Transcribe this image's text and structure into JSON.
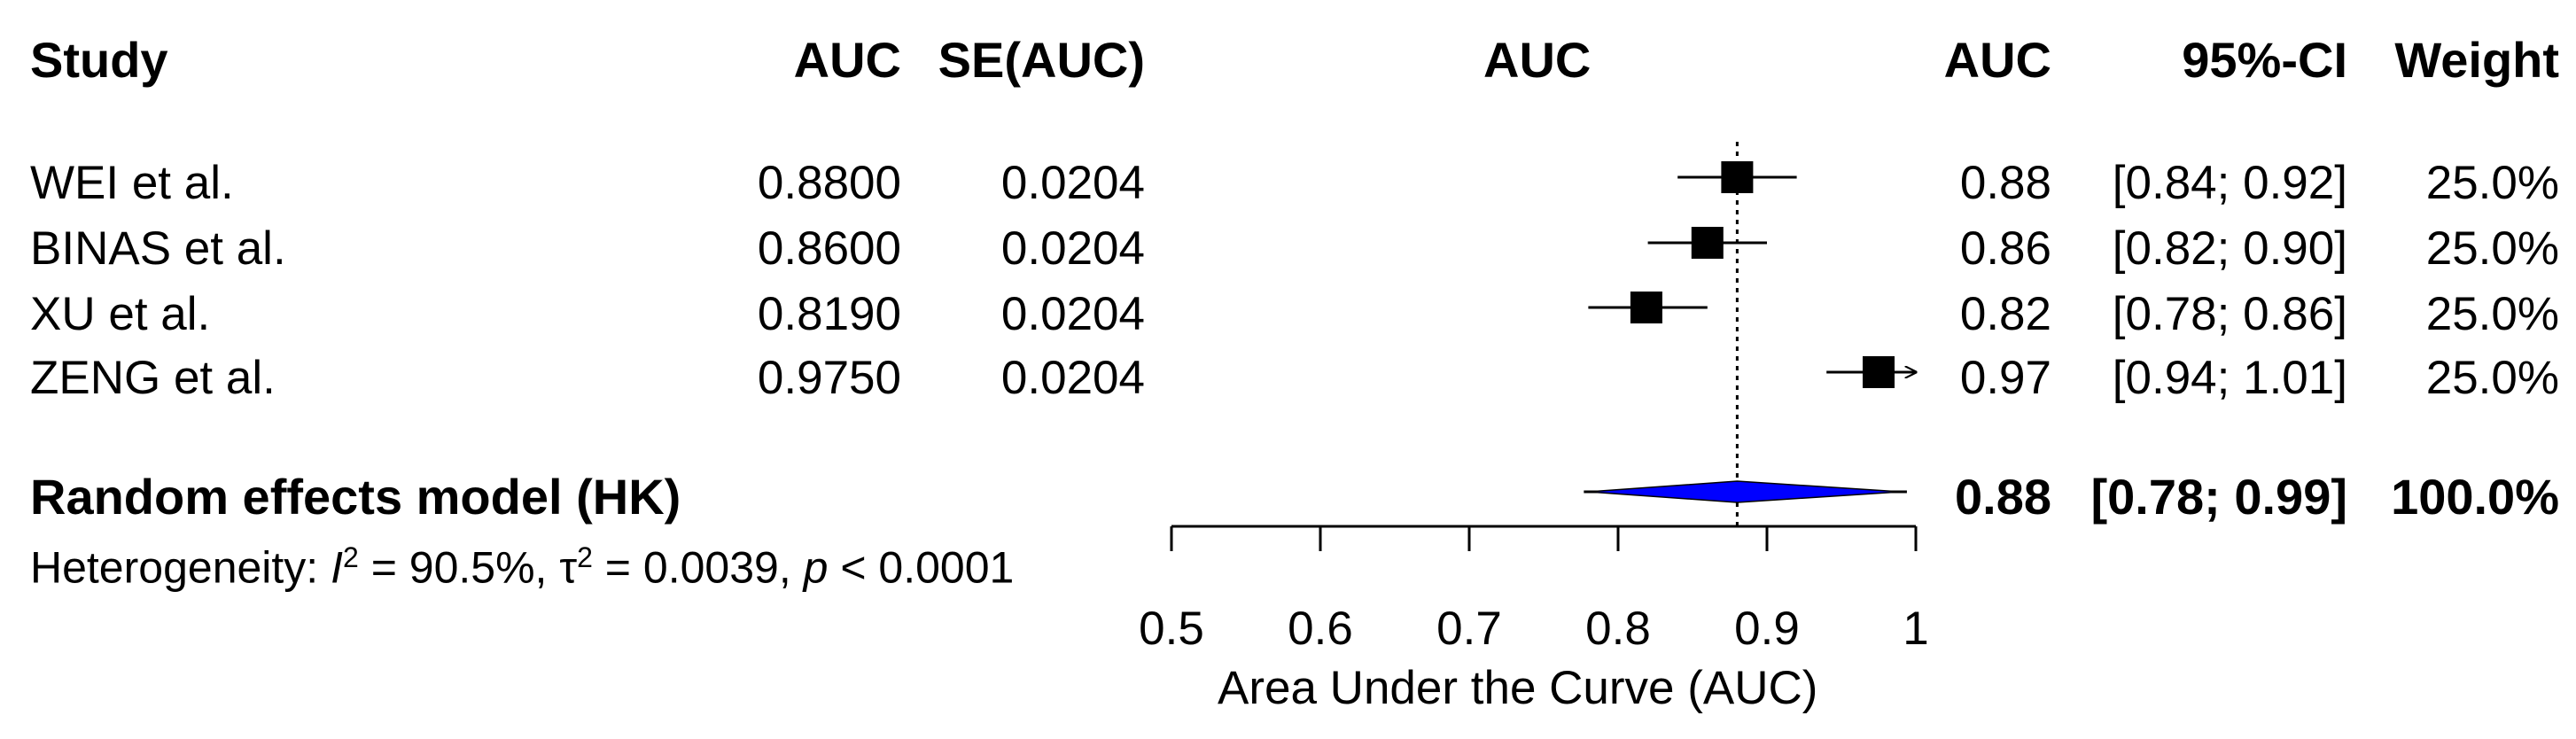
{
  "headers": {
    "study": "Study",
    "auc": "AUC",
    "se_auc": "SE(AUC)",
    "plot_auc": "AUC",
    "auc_right": "AUC",
    "ci": "95%-CI",
    "weight": "Weight"
  },
  "studies": [
    {
      "name": "WEI et al.",
      "auc": "0.8800",
      "se": "0.0204",
      "est": "0.88",
      "ci": "[0.84; 0.92]",
      "weight": "25.0%"
    },
    {
      "name": "BINAS et al.",
      "auc": "0.8600",
      "se": "0.0204",
      "est": "0.86",
      "ci": "[0.82; 0.90]",
      "weight": "25.0%"
    },
    {
      "name": "XU et al.",
      "auc": "0.8190",
      "se": "0.0204",
      "est": "0.82",
      "ci": "[0.78; 0.86]",
      "weight": "25.0%"
    },
    {
      "name": "ZENG et al.",
      "auc": "0.9750",
      "se": "0.0204",
      "est": "0.97",
      "ci": "[0.94; 1.01]",
      "weight": "25.0%"
    }
  ],
  "pooled": {
    "label": "Random effects model (HK)",
    "est": "0.88",
    "ci": "[0.78; 0.99]",
    "weight": "100.0%"
  },
  "heterogeneity": {
    "prefix": "Heterogeneity: ",
    "i_sym": "I",
    "sup": "2",
    "i_val": " = 90.5%, ",
    "tau_sym": "τ",
    "tau_val": " = 0.0039, ",
    "p_sym": "p",
    "p_val": " < 0.0001"
  },
  "chart_data": {
    "type": "forest",
    "xlabel": "Area Under the Curve (AUC)",
    "xlim": [
      0.5,
      1.0
    ],
    "ticks": [
      0.5,
      0.6,
      0.7,
      0.8,
      0.9,
      1.0
    ],
    "tick_labels": [
      "0.5",
      "0.6",
      "0.7",
      "0.8",
      "0.9",
      "1"
    ],
    "reference_line": 0.88,
    "studies": [
      {
        "name": "WEI et al.",
        "auc": 0.88,
        "lower": 0.84,
        "upper": 0.92,
        "weight": 25.0
      },
      {
        "name": "BINAS et al.",
        "auc": 0.86,
        "lower": 0.82,
        "upper": 0.9,
        "weight": 25.0
      },
      {
        "name": "XU et al.",
        "auc": 0.819,
        "lower": 0.78,
        "upper": 0.86,
        "weight": 25.0
      },
      {
        "name": "ZENG et al.",
        "auc": 0.975,
        "lower": 0.94,
        "upper": 1.01,
        "weight": 25.0
      }
    ],
    "pooled": {
      "auc": 0.88,
      "lower": 0.78,
      "upper": 0.99,
      "pred_lower": 0.777,
      "pred_upper": 0.994
    },
    "colors": {
      "diamond": "#0000ff",
      "marker": "#000000"
    }
  }
}
